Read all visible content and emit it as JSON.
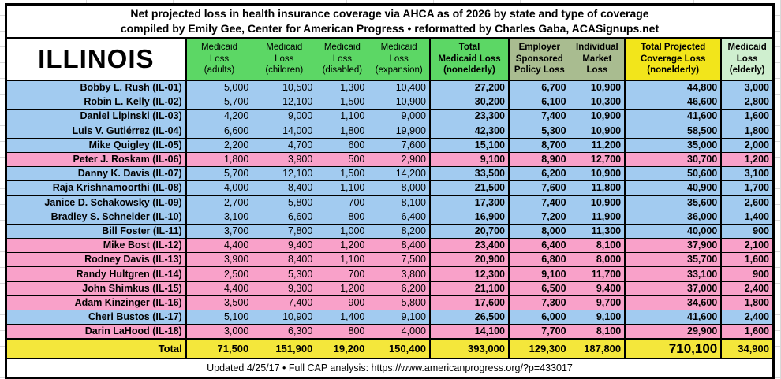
{
  "page": {
    "title_line1": "Net projected loss in health insurance coverage via AHCA as of 2026 by state and type of coverage",
    "title_line2": "compiled by Emily Gee, Center for American Progress  •  reformatted by Charles Gaba, ACASignups.net",
    "footer": "Updated 4/25/17  •  Full CAP analysis: https://www.americanprogress.org/?p=433017"
  },
  "colors": {
    "democrat_row_blue": "#A2CBF0",
    "republican_row_pink": "#F9A1C9",
    "total_row_yellow": "#F4E73B",
    "medicaid_header_green": "#5CD765",
    "employer_individual_header_green_gray": "#A9BC90",
    "projected_header_yellow": "#F2E51B",
    "elderly_header_pale_green": "#CFEFCF"
  },
  "table": {
    "state_label": "ILLINOIS",
    "columns": [
      {
        "label": "Medicaid\nLoss\n(adults)",
        "group": "medicaid"
      },
      {
        "label": "Medicaid\nLoss\n(children)",
        "group": "medicaid"
      },
      {
        "label": "Medicaid\nLoss\n(disabled)",
        "group": "medicaid"
      },
      {
        "label": "Medicaid\nLoss\n(expansion)",
        "group": "medicaid"
      },
      {
        "label": "Total\nMedicaid Loss\n(nonelderly)",
        "group": "totalmed"
      },
      {
        "label": "Employer\nSponsored\nPolicy Loss",
        "group": "esi"
      },
      {
        "label": "Individual\nMarket\nLoss",
        "group": "market"
      },
      {
        "label": "Total Projected\nCoverage Loss\n(nonelderly)",
        "group": "projected"
      },
      {
        "label": "Medicaid\nLoss\n(elderly)",
        "group": "elderly"
      }
    ],
    "rows": [
      {
        "name": "Bobby L. Rush (IL-01)",
        "highlight": "blue",
        "values": [
          "5,000",
          "10,500",
          "1,300",
          "10,400",
          "27,200",
          "6,700",
          "10,900",
          "44,800",
          "3,000"
        ]
      },
      {
        "name": "Robin L. Kelly (IL-02)",
        "highlight": "blue",
        "values": [
          "5,700",
          "12,100",
          "1,500",
          "10,900",
          "30,200",
          "6,100",
          "10,300",
          "46,600",
          "2,800"
        ]
      },
      {
        "name": "Daniel Lipinski (IL-03)",
        "highlight": "blue",
        "values": [
          "4,200",
          "9,000",
          "1,100",
          "9,000",
          "23,300",
          "7,400",
          "10,900",
          "41,600",
          "1,600"
        ]
      },
      {
        "name": "Luis V. Gutiérrez (IL-04)",
        "highlight": "blue",
        "values": [
          "6,600",
          "14,000",
          "1,800",
          "19,900",
          "42,300",
          "5,300",
          "10,900",
          "58,500",
          "1,800"
        ]
      },
      {
        "name": "Mike Quigley (IL-05)",
        "highlight": "blue",
        "values": [
          "2,200",
          "4,700",
          "600",
          "7,600",
          "15,100",
          "8,700",
          "11,200",
          "35,000",
          "2,000"
        ]
      },
      {
        "name": "Peter J. Roskam (IL-06)",
        "highlight": "pink",
        "values": [
          "1,800",
          "3,900",
          "500",
          "2,900",
          "9,100",
          "8,900",
          "12,700",
          "30,700",
          "1,200"
        ]
      },
      {
        "name": "Danny K. Davis (IL-07)",
        "highlight": "blue",
        "values": [
          "5,700",
          "12,100",
          "1,500",
          "14,200",
          "33,500",
          "6,200",
          "10,900",
          "50,600",
          "3,100"
        ]
      },
      {
        "name": "Raja Krishnamoorthi (IL-08)",
        "highlight": "blue",
        "values": [
          "4,000",
          "8,400",
          "1,100",
          "8,000",
          "21,500",
          "7,600",
          "11,800",
          "40,900",
          "1,700"
        ]
      },
      {
        "name": "Janice D. Schakowsky (IL-09)",
        "highlight": "blue",
        "values": [
          "2,700",
          "5,800",
          "700",
          "8,100",
          "17,300",
          "7,400",
          "10,900",
          "35,600",
          "2,600"
        ]
      },
      {
        "name": "Bradley S. Schneider (IL-10)",
        "highlight": "blue",
        "values": [
          "3,100",
          "6,600",
          "800",
          "6,400",
          "16,900",
          "7,200",
          "11,900",
          "36,000",
          "1,400"
        ]
      },
      {
        "name": "Bill Foster (IL-11)",
        "highlight": "blue",
        "values": [
          "3,700",
          "7,800",
          "1,000",
          "8,200",
          "20,700",
          "8,000",
          "11,300",
          "40,000",
          "900"
        ]
      },
      {
        "name": "Mike Bost (IL-12)",
        "highlight": "pink",
        "values": [
          "4,400",
          "9,400",
          "1,200",
          "8,400",
          "23,400",
          "6,400",
          "8,100",
          "37,900",
          "2,100"
        ]
      },
      {
        "name": "Rodney Davis (IL-13)",
        "highlight": "pink",
        "values": [
          "3,900",
          "8,400",
          "1,100",
          "7,500",
          "20,900",
          "6,800",
          "8,000",
          "35,700",
          "1,600"
        ]
      },
      {
        "name": "Randy Hultgren (IL-14)",
        "highlight": "pink",
        "values": [
          "2,500",
          "5,300",
          "700",
          "3,800",
          "12,300",
          "9,100",
          "11,700",
          "33,100",
          "900"
        ]
      },
      {
        "name": "John Shimkus (IL-15)",
        "highlight": "pink",
        "values": [
          "4,400",
          "9,300",
          "1,200",
          "6,200",
          "21,100",
          "6,500",
          "9,400",
          "37,000",
          "2,400"
        ]
      },
      {
        "name": "Adam Kinzinger (IL-16)",
        "highlight": "pink",
        "values": [
          "3,500",
          "7,400",
          "900",
          "5,800",
          "17,600",
          "7,300",
          "9,700",
          "34,600",
          "1,800"
        ]
      },
      {
        "name": "Cheri Bustos (IL-17)",
        "highlight": "blue",
        "values": [
          "5,100",
          "10,900",
          "1,400",
          "9,100",
          "26,500",
          "6,000",
          "9,100",
          "41,600",
          "2,400"
        ]
      },
      {
        "name": "Darin LaHood (IL-18)",
        "highlight": "pink",
        "values": [
          "3,000",
          "6,300",
          "800",
          "4,000",
          "14,100",
          "7,700",
          "8,100",
          "29,900",
          "1,600"
        ]
      }
    ],
    "total": {
      "label": "Total",
      "values": [
        "71,500",
        "151,900",
        "19,200",
        "150,400",
        "393,000",
        "129,300",
        "187,800",
        "710,100",
        "34,900"
      ]
    }
  }
}
